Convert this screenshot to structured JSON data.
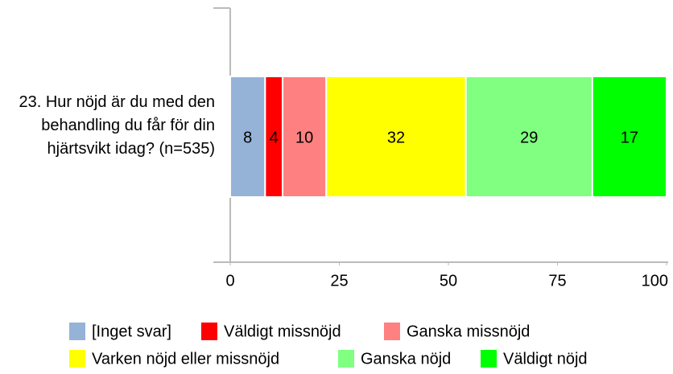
{
  "chart_data": {
    "type": "stacked-bar-horizontal",
    "categories": [
      "23. Hur nöjd är du med den behandling du får för din hjärtsvikt idag? (n=535)"
    ],
    "series": [
      {
        "name": "[Inget svar]",
        "color": "#95b3d7",
        "values": [
          8
        ]
      },
      {
        "name": "Väldigt missnöjd",
        "color": "#ff0000",
        "values": [
          4
        ]
      },
      {
        "name": "Ganska missnöjd",
        "color": "#ff8080",
        "values": [
          10
        ]
      },
      {
        "name": "Varken nöjd eller missnöjd",
        "color": "#ffff00",
        "values": [
          32
        ]
      },
      {
        "name": "Ganska nöjd",
        "color": "#80ff80",
        "values": [
          29
        ]
      },
      {
        "name": "Väldigt nöjd",
        "color": "#00ff00",
        "values": [
          17
        ]
      }
    ],
    "xlim": [
      0,
      100
    ],
    "xticks": [
      0,
      25,
      50,
      75,
      100
    ],
    "legend": "bottom"
  }
}
